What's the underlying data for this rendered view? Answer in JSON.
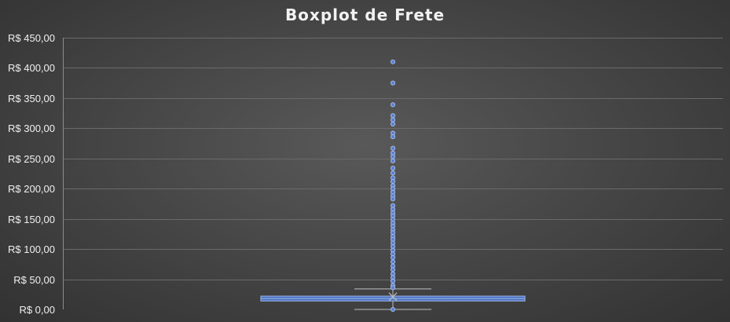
{
  "chart_data": {
    "type": "boxplot",
    "title": "Boxplot de Frete",
    "xlabel": "",
    "ylabel": "",
    "ylim": [
      0,
      450
    ],
    "y_ticks": [
      0,
      50,
      100,
      150,
      200,
      250,
      300,
      350,
      400,
      450
    ],
    "y_tick_labels": [
      "R$ 0,00",
      "R$ 50,00",
      "R$ 100,00",
      "R$ 150,00",
      "R$ 200,00",
      "R$ 250,00",
      "R$ 300,00",
      "R$ 350,00",
      "R$ 400,00",
      "R$ 450,00"
    ],
    "grid": true,
    "legend": "none",
    "box": {
      "min": 0,
      "q1": 14,
      "median": 18,
      "q3": 22,
      "upper_whisker": 34,
      "mean": 21
    },
    "outliers": [
      410,
      375,
      339,
      321,
      314,
      307,
      292,
      286,
      267,
      259,
      253,
      246,
      234,
      226,
      218,
      212,
      205,
      200,
      194,
      188,
      183,
      172,
      166,
      160,
      155,
      149,
      143,
      138,
      132,
      127,
      121,
      116,
      110,
      104,
      98,
      92,
      86,
      79,
      72,
      66,
      59,
      53,
      47,
      40,
      36
    ],
    "colors": {
      "box_fill": "#4a72c4",
      "box_stroke": "#8faadc",
      "whisker": "#bfbfbf",
      "outlier_fill": "#5b7fd0",
      "outlier_stroke": "#a9c0ee",
      "grid": "#6a6a6a",
      "axis": "#8c8c8c",
      "text": "#f0f0f0"
    }
  }
}
